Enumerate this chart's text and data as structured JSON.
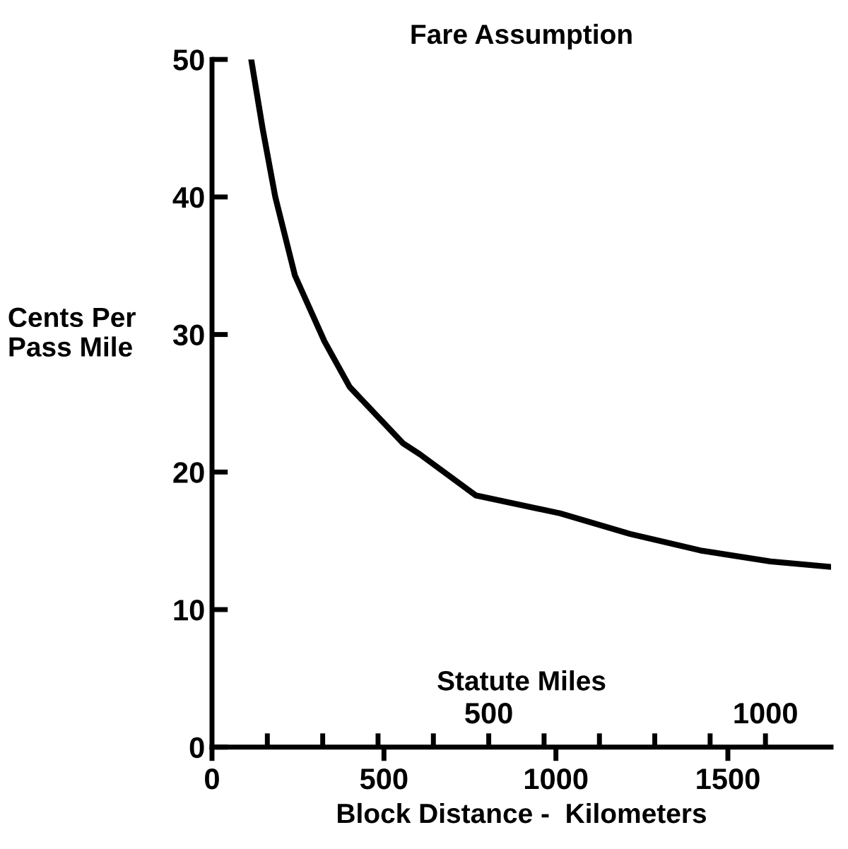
{
  "chart_data": {
    "type": "line",
    "title": "Fare Assumption",
    "xlabel": "Block Distance -  Kilometers",
    "ylabel": "Cents Per\nPass Mile",
    "x2label": "Statute Miles",
    "x": [
      114,
      147,
      184,
      241,
      327,
      400,
      555,
      604,
      767,
      1012,
      1216,
      1420,
      1624,
      1800
    ],
    "series": [
      {
        "color": "#000000",
        "values": [
          50,
          45,
          40,
          34.3,
          29.5,
          26.2,
          22.1,
          21.3,
          18.3,
          17.0,
          15.5,
          14.3,
          13.5,
          13.1
        ]
      }
    ],
    "xlim": [
      0,
      1800
    ],
    "xticks": [
      0,
      500,
      1000,
      1500
    ],
    "ylim": [
      0,
      50
    ],
    "yticks": [
      0,
      10,
      20,
      30,
      40,
      50
    ],
    "x2lim": [
      0,
      1118.5
    ],
    "x2ticks": [
      {
        "value": 100,
        "label": null
      },
      {
        "value": 200,
        "label": null
      },
      {
        "value": 300,
        "label": null
      },
      {
        "value": 400,
        "label": null
      },
      500,
      {
        "value": 600,
        "label": null
      },
      {
        "value": 700,
        "label": null
      },
      {
        "value": 800,
        "label": null
      },
      {
        "value": 900,
        "label": null
      },
      1000
    ],
    "grid": false,
    "legend": false,
    "marker": "none",
    "line_style": "solid"
  }
}
